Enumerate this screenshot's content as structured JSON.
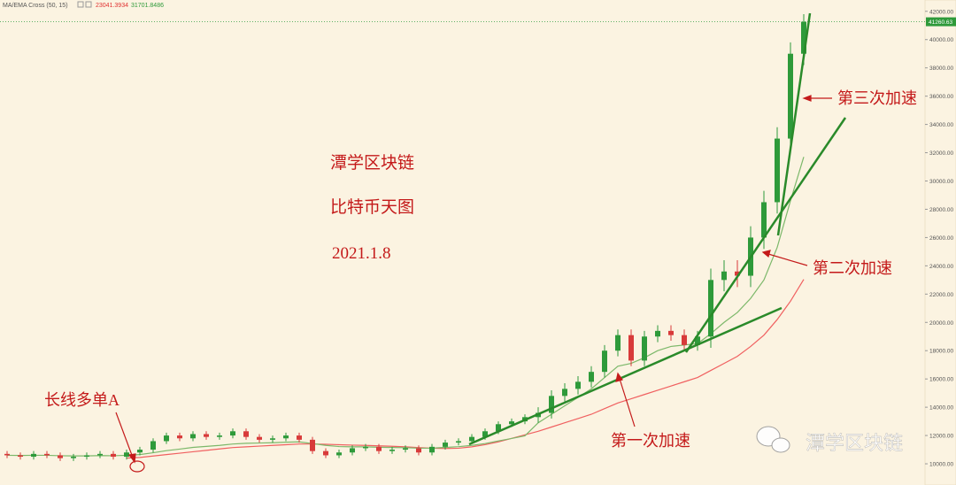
{
  "chart_data": {
    "type": "candlestick",
    "indicator": {
      "label": "MA/EMA Cross (50, 15)",
      "values": [
        23041.3934,
        31701.8486
      ],
      "colors": [
        "#e03030",
        "#2e9a3a"
      ]
    },
    "last_price": 41260.63,
    "annotations": {
      "brand": "潭学区块链",
      "subtitle": "比特币天图",
      "date": "2021.1.8",
      "entry": "长线多单A",
      "accel1": "第一次加速",
      "accel2": "第二次加速",
      "accel3": "第三次加速",
      "watermark": "潭学区块链"
    },
    "ylim": [
      8500,
      42800
    ],
    "yticks": [
      {
        "value": 10000,
        "label": "10000.00"
      },
      {
        "value": 12000,
        "label": "12000.00"
      },
      {
        "value": 14000,
        "label": "14000.00"
      },
      {
        "value": 16000,
        "label": "16000.00"
      },
      {
        "value": 18000,
        "label": "18000.00"
      },
      {
        "value": 20000,
        "label": "20000.00"
      },
      {
        "value": 22000,
        "label": "22000.00"
      },
      {
        "value": 24000,
        "label": "24000.00"
      },
      {
        "value": 26000,
        "label": "26000.00"
      },
      {
        "value": 28000,
        "label": "28000.00"
      },
      {
        "value": 30000,
        "label": "30000.00"
      },
      {
        "value": 32000,
        "label": "32000.00"
      },
      {
        "value": 34000,
        "label": "34000.00"
      },
      {
        "value": 36000,
        "label": "36000.00"
      },
      {
        "value": 38000,
        "label": "38000.00"
      },
      {
        "value": 40000,
        "label": "40000.00"
      },
      {
        "value": 42000,
        "label": "42000.00"
      }
    ],
    "up_color": "#2e9a3a",
    "down_color": "#d83a3a",
    "open": [
      10700,
      10600,
      10500,
      10700,
      10600,
      10400,
      10500,
      10600,
      10700,
      10500,
      10800,
      11000,
      11600,
      12000,
      11800,
      12100,
      11900,
      12000,
      12300,
      11900,
      11700,
      11800,
      12000,
      11700,
      10900,
      10600,
      10800,
      11100,
      11200,
      10900,
      11000,
      11100,
      10800,
      11200,
      11500,
      11600,
      11900,
      12300,
      12800,
      13000,
      13300,
      13600,
      14800,
      15300,
      15800,
      16500,
      18000,
      19100,
      17300,
      19000,
      19400,
      19100,
      18400,
      19000,
      23000,
      23600,
      23300,
      26000,
      28500,
      33000,
      39000
    ],
    "high": [
      10900,
      10800,
      10900,
      10900,
      10800,
      10700,
      10800,
      10900,
      10900,
      11000,
      11200,
      11800,
      12200,
      12200,
      12300,
      12300,
      12200,
      12500,
      12500,
      12100,
      12000,
      12200,
      12200,
      11900,
      11100,
      11000,
      11300,
      11400,
      11400,
      11200,
      11300,
      11300,
      11400,
      11700,
      11800,
      12100,
      12500,
      13000,
      13200,
      13500,
      14000,
      15200,
      15700,
      16200,
      16900,
      18400,
      19500,
      19500,
      19400,
      19800,
      19800,
      19500,
      19400,
      23800,
      24400,
      24400,
      26800,
      29300,
      33800,
      39800,
      41800
    ],
    "low": [
      10400,
      10300,
      10300,
      10400,
      10200,
      10200,
      10300,
      10400,
      10300,
      10300,
      10600,
      10800,
      11400,
      11600,
      11600,
      11700,
      11700,
      11800,
      11700,
      11500,
      11500,
      11600,
      11500,
      10700,
      10400,
      10400,
      10600,
      10900,
      10700,
      10700,
      10800,
      10600,
      10600,
      11000,
      11300,
      11400,
      11700,
      12100,
      12600,
      12800,
      12900,
      13200,
      14400,
      14900,
      15400,
      16100,
      17600,
      16900,
      16900,
      18600,
      18700,
      18000,
      18000,
      18200,
      22200,
      22500,
      22500,
      25200,
      27700,
      32200,
      38200
    ],
    "close": [
      10600,
      10500,
      10700,
      10600,
      10400,
      10500,
      10600,
      10700,
      10500,
      10800,
      11000,
      11600,
      12000,
      11800,
      12100,
      11900,
      12000,
      12300,
      11900,
      11700,
      11800,
      12000,
      11700,
      10900,
      10600,
      10800,
      11100,
      11200,
      10900,
      11000,
      11100,
      10800,
      11200,
      11500,
      11600,
      11900,
      12300,
      12800,
      13000,
      13300,
      13600,
      14800,
      15300,
      15800,
      16500,
      18000,
      19100,
      17300,
      19000,
      19400,
      19100,
      18400,
      19000,
      23000,
      23600,
      23300,
      26000,
      28500,
      33000,
      39000,
      41260.63
    ],
    "series": [
      {
        "name": "MA 50",
        "color": "#f06060",
        "values": [
          null,
          null,
          null,
          null,
          null,
          null,
          null,
          null,
          null,
          10400,
          10450,
          10550,
          10650,
          10750,
          10850,
          10950,
          11050,
          11150,
          11200,
          11250,
          11300,
          11350,
          11400,
          11400,
          11380,
          11350,
          11320,
          11300,
          11270,
          11240,
          11200,
          11150,
          11100,
          11080,
          11100,
          11200,
          11350,
          11550,
          11800,
          12050,
          12300,
          12600,
          12900,
          13200,
          13500,
          13900,
          14300,
          14600,
          14900,
          15200,
          15500,
          15800,
          16100,
          16600,
          17100,
          17600,
          18300,
          19100,
          20200,
          21500,
          23041.3934
        ]
      },
      {
        "name": "EMA 15",
        "color": "#7cb86a",
        "values": [
          10600,
          10590,
          10600,
          10600,
          10570,
          10560,
          10560,
          10580,
          10570,
          10600,
          10650,
          10780,
          10930,
          11040,
          11160,
          11230,
          11300,
          11400,
          11450,
          11470,
          11490,
          11530,
          11550,
          11430,
          11300,
          11220,
          11200,
          11200,
          11170,
          11150,
          11140,
          11100,
          11110,
          11160,
          11210,
          11300,
          11430,
          11620,
          11790,
          11980,
          12900,
          13500,
          14100,
          14700,
          15300,
          16100,
          16900,
          17100,
          17500,
          18000,
          18300,
          18400,
          18500,
          19200,
          20000,
          20700,
          21700,
          23000,
          25300,
          28600,
          31701.8486
        ]
      }
    ]
  }
}
